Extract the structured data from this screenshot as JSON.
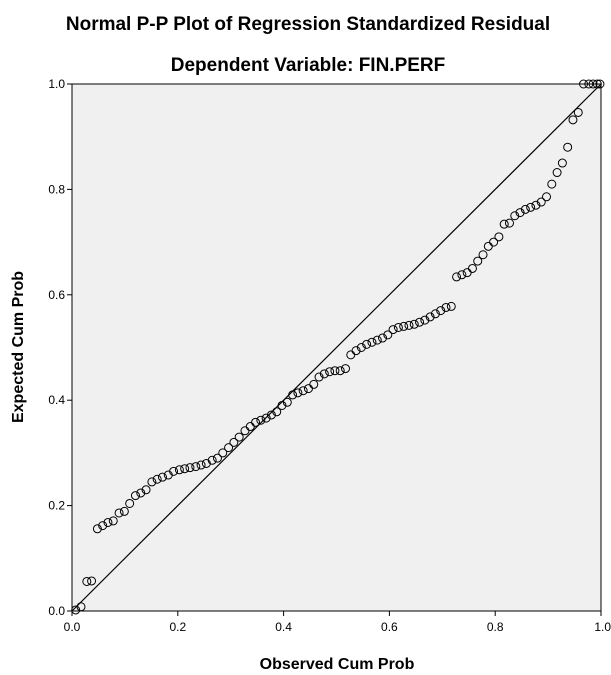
{
  "chart_data": {
    "type": "scatter",
    "title": "Normal P-P Plot of Regression Standardized Residual",
    "subtitle": "Dependent Variable: FIN.PERF",
    "xlabel": "Observed Cum Prob",
    "ylabel": "Expected Cum Prob",
    "xlim": [
      0.0,
      1.0
    ],
    "ylim": [
      0.0,
      1.0
    ],
    "x_ticks": [
      "0.0",
      "0.2",
      "0.4",
      "0.6",
      "0.8",
      "1.0"
    ],
    "y_ticks": [
      "0.0",
      "0.2",
      "0.4",
      "0.6",
      "0.8",
      "1.0"
    ],
    "reference_line": [
      [
        0,
        0
      ],
      [
        1,
        1
      ]
    ],
    "grid": false,
    "plot_background": "#f0f0f0",
    "marker_color": "#000000",
    "points": [
      [
        0.007,
        0.002
      ],
      [
        0.017,
        0.008
      ],
      [
        0.028,
        0.056
      ],
      [
        0.037,
        0.057
      ],
      [
        0.048,
        0.156
      ],
      [
        0.058,
        0.162
      ],
      [
        0.068,
        0.168
      ],
      [
        0.078,
        0.171
      ],
      [
        0.089,
        0.186
      ],
      [
        0.099,
        0.189
      ],
      [
        0.109,
        0.204
      ],
      [
        0.12,
        0.219
      ],
      [
        0.13,
        0.224
      ],
      [
        0.14,
        0.23
      ],
      [
        0.151,
        0.245
      ],
      [
        0.161,
        0.25
      ],
      [
        0.171,
        0.254
      ],
      [
        0.182,
        0.258
      ],
      [
        0.192,
        0.265
      ],
      [
        0.203,
        0.268
      ],
      [
        0.213,
        0.27
      ],
      [
        0.223,
        0.272
      ],
      [
        0.234,
        0.274
      ],
      [
        0.244,
        0.277
      ],
      [
        0.254,
        0.28
      ],
      [
        0.265,
        0.286
      ],
      [
        0.275,
        0.29
      ],
      [
        0.285,
        0.3
      ],
      [
        0.296,
        0.31
      ],
      [
        0.306,
        0.32
      ],
      [
        0.316,
        0.33
      ],
      [
        0.327,
        0.342
      ],
      [
        0.337,
        0.35
      ],
      [
        0.347,
        0.358
      ],
      [
        0.357,
        0.362
      ],
      [
        0.367,
        0.366
      ],
      [
        0.377,
        0.372
      ],
      [
        0.387,
        0.378
      ],
      [
        0.397,
        0.39
      ],
      [
        0.407,
        0.396
      ],
      [
        0.417,
        0.41
      ],
      [
        0.427,
        0.414
      ],
      [
        0.437,
        0.418
      ],
      [
        0.447,
        0.422
      ],
      [
        0.457,
        0.43
      ],
      [
        0.467,
        0.444
      ],
      [
        0.477,
        0.45
      ],
      [
        0.487,
        0.454
      ],
      [
        0.497,
        0.456
      ],
      [
        0.507,
        0.456
      ],
      [
        0.517,
        0.46
      ],
      [
        0.527,
        0.486
      ],
      [
        0.537,
        0.494
      ],
      [
        0.547,
        0.5
      ],
      [
        0.557,
        0.506
      ],
      [
        0.567,
        0.51
      ],
      [
        0.577,
        0.514
      ],
      [
        0.587,
        0.518
      ],
      [
        0.597,
        0.524
      ],
      [
        0.607,
        0.534
      ],
      [
        0.617,
        0.538
      ],
      [
        0.627,
        0.54
      ],
      [
        0.637,
        0.542
      ],
      [
        0.647,
        0.544
      ],
      [
        0.657,
        0.548
      ],
      [
        0.667,
        0.552
      ],
      [
        0.677,
        0.558
      ],
      [
        0.687,
        0.564
      ],
      [
        0.697,
        0.57
      ],
      [
        0.707,
        0.576
      ],
      [
        0.717,
        0.578
      ],
      [
        0.727,
        0.634
      ],
      [
        0.737,
        0.638
      ],
      [
        0.747,
        0.642
      ],
      [
        0.757,
        0.65
      ],
      [
        0.767,
        0.664
      ],
      [
        0.777,
        0.676
      ],
      [
        0.787,
        0.692
      ],
      [
        0.797,
        0.7
      ],
      [
        0.807,
        0.71
      ],
      [
        0.817,
        0.734
      ],
      [
        0.827,
        0.736
      ],
      [
        0.837,
        0.75
      ],
      [
        0.847,
        0.756
      ],
      [
        0.857,
        0.762
      ],
      [
        0.867,
        0.766
      ],
      [
        0.877,
        0.77
      ],
      [
        0.887,
        0.776
      ],
      [
        0.897,
        0.786
      ],
      [
        0.907,
        0.81
      ],
      [
        0.917,
        0.832
      ],
      [
        0.927,
        0.85
      ],
      [
        0.937,
        0.88
      ],
      [
        0.947,
        0.932
      ],
      [
        0.957,
        0.946
      ],
      [
        0.967,
        1.0
      ],
      [
        0.977,
        1.0
      ],
      [
        0.985,
        1.0
      ],
      [
        0.993,
        1.0
      ],
      [
        0.998,
        1.0
      ]
    ]
  }
}
